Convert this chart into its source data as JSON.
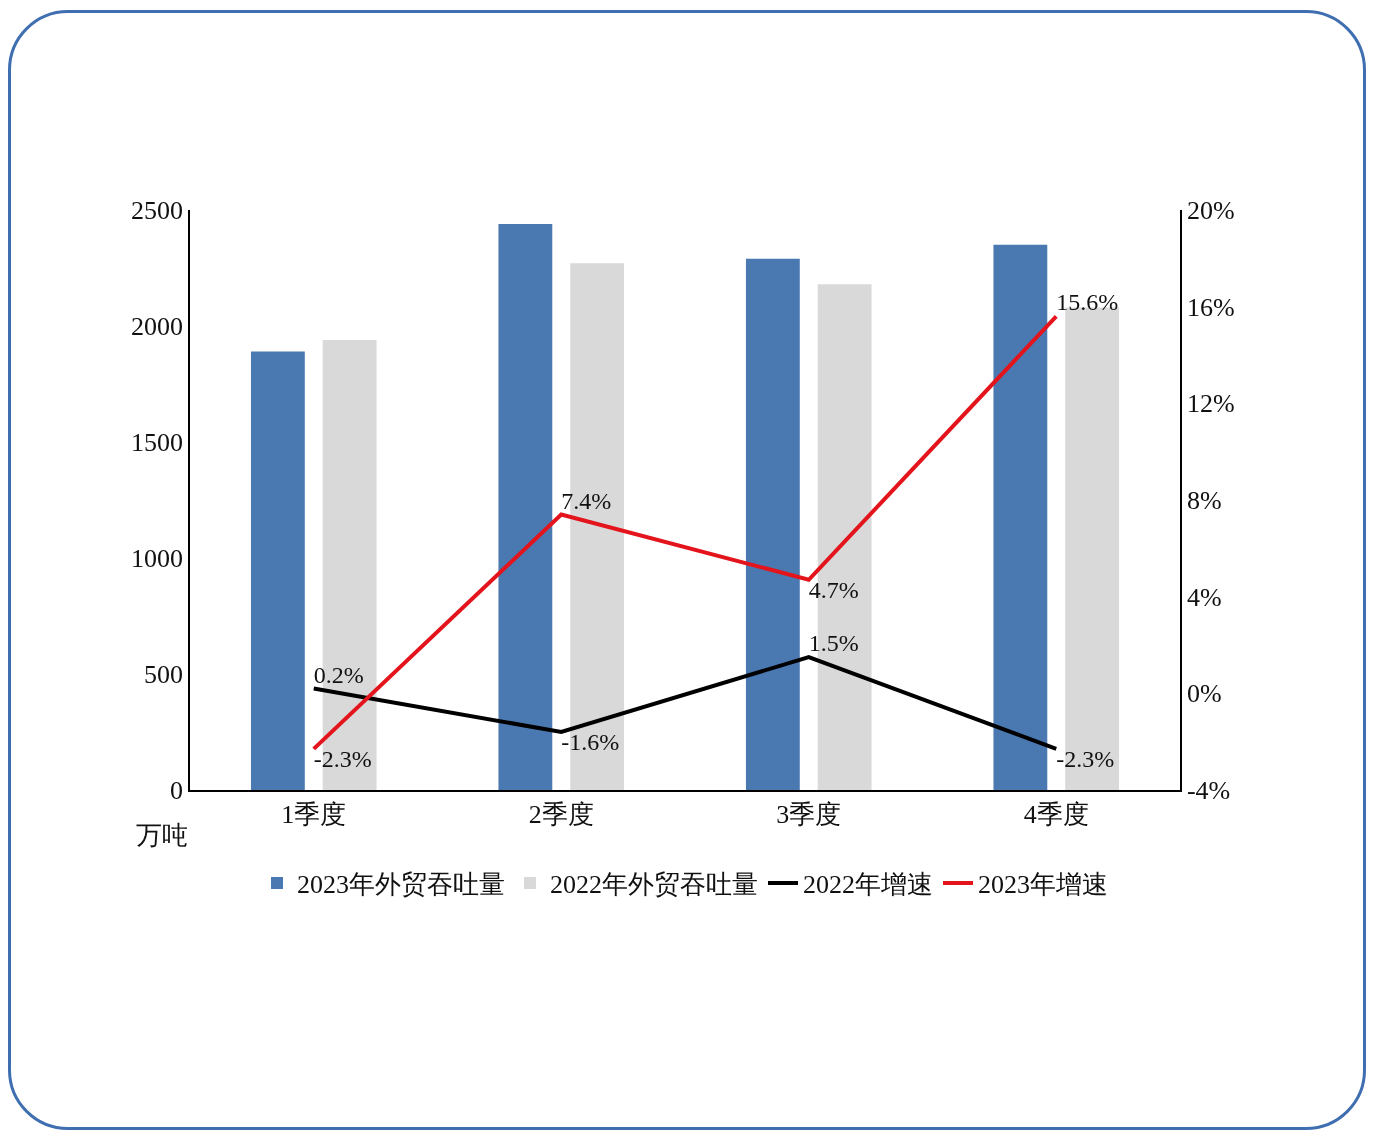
{
  "chart_data": {
    "type": "bar",
    "ylabel": "万吨",
    "categories": [
      "1季度",
      "2季度",
      "3季度",
      "4季度"
    ],
    "series": [
      {
        "name": "2023年外贸吞吐量",
        "color": "#4a78b0",
        "values": [
          1890,
          2440,
          2290,
          2350
        ]
      },
      {
        "name": "2022年外贸吞吐量",
        "color": "#d9d9d9",
        "values": [
          1940,
          2270,
          2180,
          2080
        ]
      },
      {
        "name": "2022年增速",
        "type": "line",
        "axis": "y2",
        "color": "#000000",
        "values": [
          0.2,
          -1.6,
          1.5,
          -2.3
        ],
        "value_labels": [
          "0.2%",
          "-1.6%",
          "1.5%",
          "-2.3%"
        ]
      },
      {
        "name": "2023年增速",
        "type": "line",
        "axis": "y2",
        "color": "#e3141b",
        "values": [
          -2.3,
          7.4,
          4.7,
          15.6
        ],
        "value_labels": [
          "-2.3%",
          "7.4%",
          "4.7%",
          "15.6%"
        ]
      }
    ],
    "ylim": [
      0,
      2500
    ],
    "yticks": [
      0,
      500,
      1000,
      1500,
      2000,
      2500
    ],
    "y2lim": [
      -4,
      20
    ],
    "y2ticks": [
      {
        "value": -4,
        "label": "-4%"
      },
      {
        "value": 0,
        "label": "0%"
      },
      {
        "value": 4,
        "label": "4%"
      },
      {
        "value": 8,
        "label": "8%"
      },
      {
        "value": 12,
        "label": "12%"
      },
      {
        "value": 16,
        "label": "16%"
      },
      {
        "value": 20,
        "label": "20%"
      }
    ],
    "grid": false,
    "legend": "bottom",
    "marker": "none",
    "line_style": "solid"
  }
}
